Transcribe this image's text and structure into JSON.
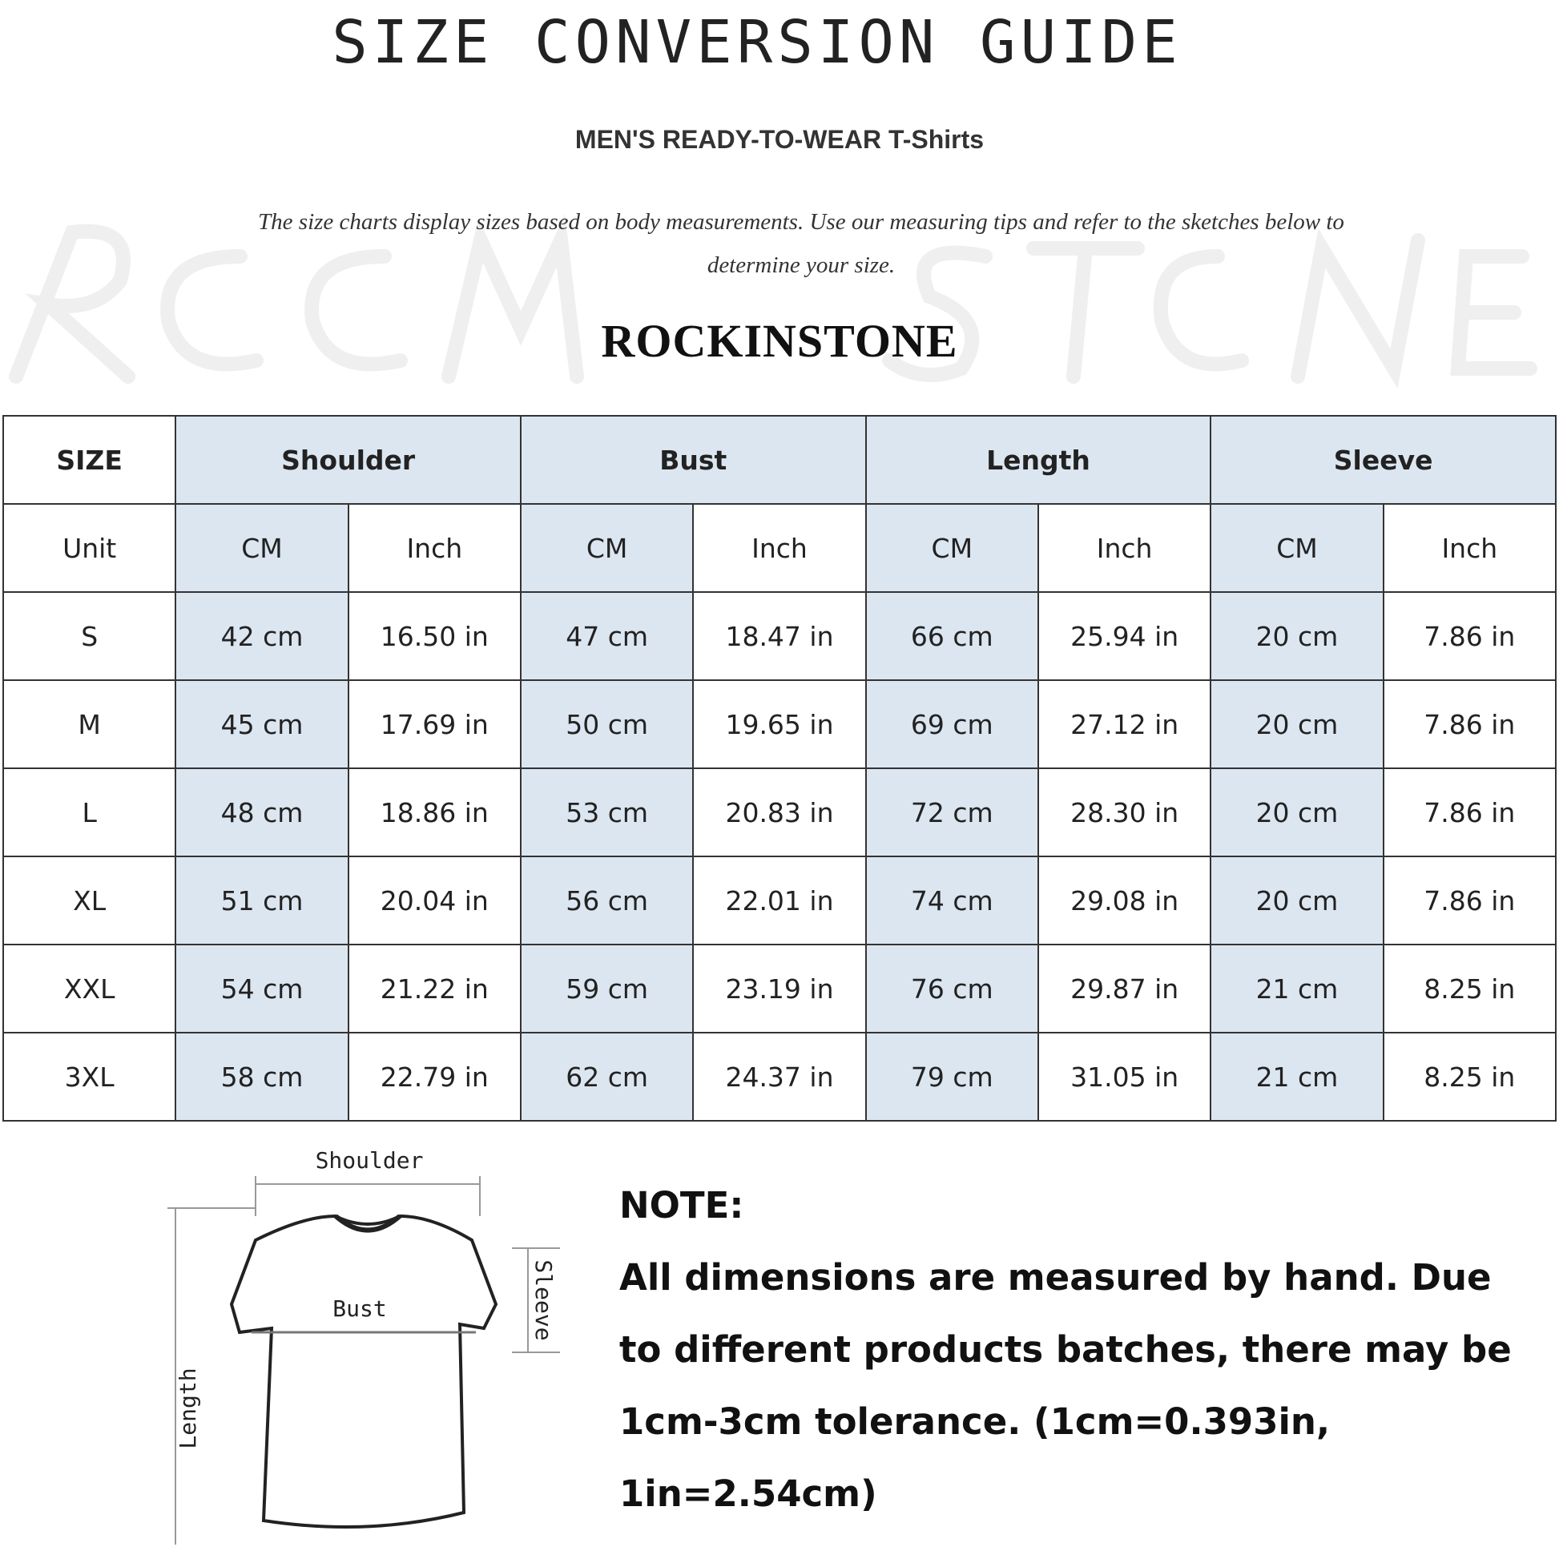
{
  "title": "SIZE CONVERSION GUIDE",
  "subtitle": "MEN'S READY-TO-WEAR T-Shirts",
  "intro": "The size charts display sizes based on body measurements. Use our measuring tips and refer to the sketches below to determine your size.",
  "watermark": "ROCKINSTONE",
  "brand": "ROCKINSTONE",
  "table": {
    "size_label": "SIZE",
    "unit_label": "Unit",
    "groups": [
      "Shoulder",
      "Bust",
      "Length",
      "Sleeve"
    ],
    "units": [
      "CM",
      "Inch",
      "CM",
      "Inch",
      "CM",
      "Inch",
      "CM",
      "Inch"
    ],
    "rows": [
      {
        "size": "S",
        "values": [
          "42 cm",
          "16.50 in",
          "47 cm",
          "18.47 in",
          "66 cm",
          "25.94 in",
          "20 cm",
          "7.86 in"
        ]
      },
      {
        "size": "M",
        "values": [
          "45 cm",
          "17.69 in",
          "50 cm",
          "19.65 in",
          "69 cm",
          "27.12 in",
          "20 cm",
          "7.86 in"
        ]
      },
      {
        "size": "L",
        "values": [
          "48 cm",
          "18.86 in",
          "53 cm",
          "20.83 in",
          "72 cm",
          "28.30 in",
          "20 cm",
          "7.86 in"
        ]
      },
      {
        "size": "XL",
        "values": [
          "51 cm",
          "20.04 in",
          "56 cm",
          "22.01 in",
          "74 cm",
          "29.08 in",
          "20 cm",
          "7.86 in"
        ]
      },
      {
        "size": "XXL",
        "values": [
          "54 cm",
          "21.22 in",
          "59 cm",
          "23.19 in",
          "76 cm",
          "29.87 in",
          "21 cm",
          "8.25 in"
        ]
      },
      {
        "size": "3XL",
        "values": [
          "58 cm",
          "22.79 in",
          "62 cm",
          "24.37 in",
          "79 cm",
          "31.05 in",
          "21 cm",
          "8.25 in"
        ]
      }
    ]
  },
  "sketch": {
    "shoulder": "Shoulder",
    "bust": "Bust",
    "length": "Length",
    "sleeve": "Sleeve"
  },
  "note": {
    "heading": "NOTE:",
    "text": "All dimensions are measured by hand. Due to different products batches, there may be 1cm-3cm tolerance. (1cm=0.393in, 1in=2.54cm)"
  },
  "colors": {
    "header_fill": "#dce6f1",
    "border": "#333333"
  }
}
